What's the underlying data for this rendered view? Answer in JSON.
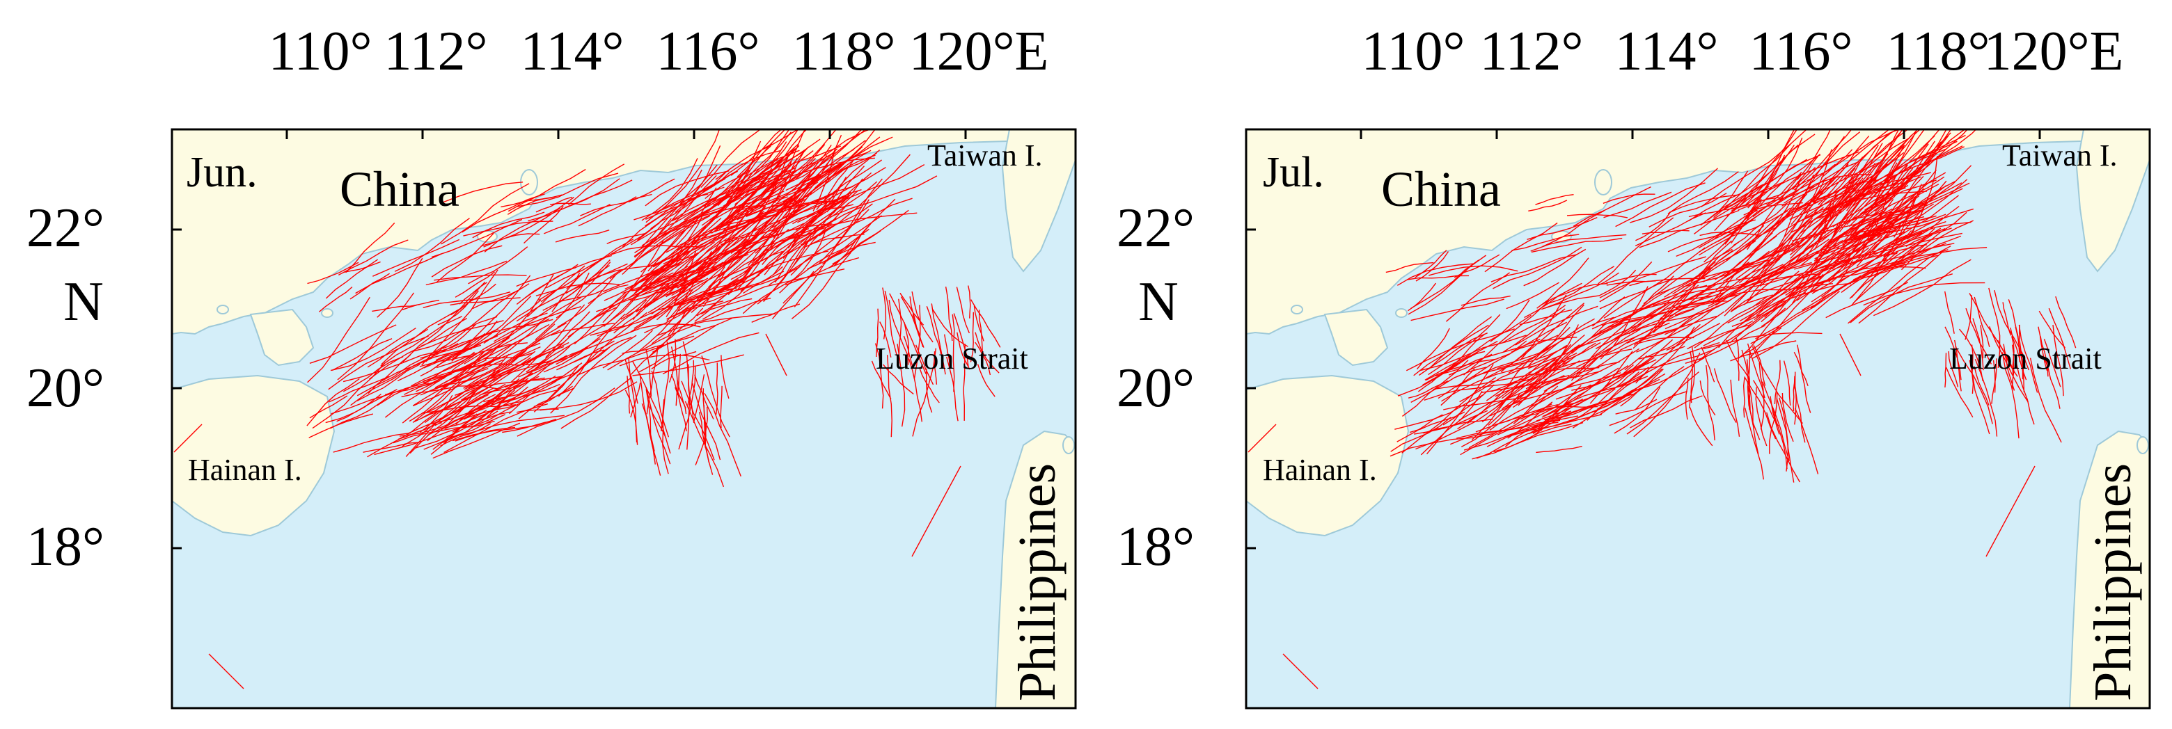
{
  "colors": {
    "sea": "#d4eef9",
    "land": "#fdfbe2",
    "coast": "#9ec9d8",
    "track": "#ff0000",
    "frame": "#000000"
  },
  "axes": {
    "lon_ticks": [
      "110°",
      "112°",
      "114°",
      "116°",
      "118°",
      "120°E"
    ],
    "lat_ticks": [
      "22°",
      "N",
      "20°",
      "18°"
    ],
    "lon_range": [
      108.3,
      121.5
    ],
    "lat_range": [
      16.2,
      23.4
    ]
  },
  "panels": [
    {
      "month": "Jun.",
      "labels": {
        "china": "China",
        "taiwan": "Taiwan I.",
        "luzon": "Luzon Strait",
        "hainan": "Hainan I.",
        "philippines": "Philippines"
      }
    },
    {
      "month": "Jul.",
      "labels": {
        "china": "China",
        "taiwan": "Taiwan I.",
        "luzon": "Luzon Strait",
        "hainan": "Hainan I.",
        "philippines": "Philippines"
      }
    }
  ]
}
